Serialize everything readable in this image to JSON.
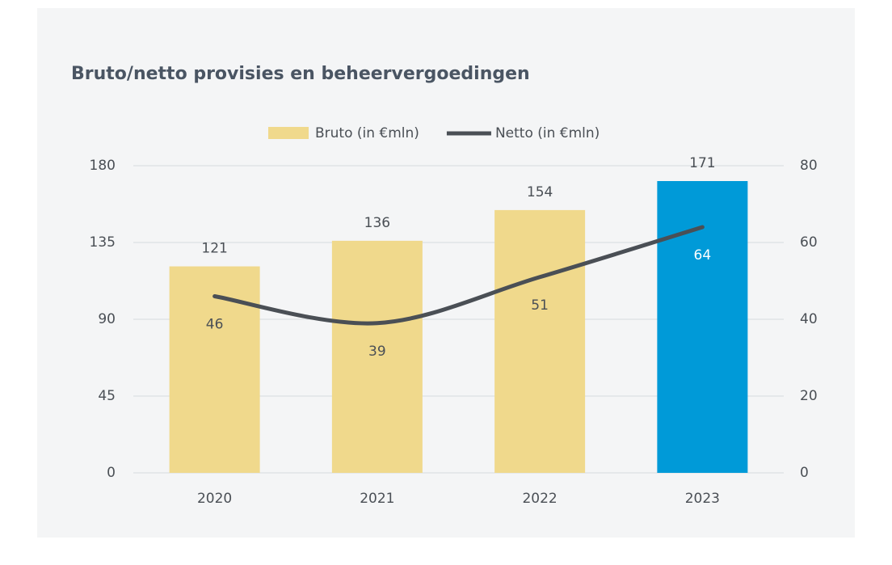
{
  "chart_data": {
    "type": "bar_line",
    "title": "Bruto/netto provisies en beheervergoedingen",
    "categories": [
      "2020",
      "2021",
      "2022",
      "2023"
    ],
    "series": [
      {
        "name": "Bruto (in €mln)",
        "type": "bar",
        "color": "#f0d98c",
        "colors": [
          "#f0d98c",
          "#f0d98c",
          "#f0d98c",
          "#009ad8"
        ],
        "values": [
          121,
          136,
          154,
          171
        ]
      },
      {
        "name": "Netto (in €mln)",
        "type": "line",
        "axis": "y2",
        "color": "#4a4f55",
        "values": [
          46,
          39,
          51,
          64
        ]
      }
    ],
    "ylim": [
      0,
      180
    ],
    "yticks": [
      0,
      45,
      90,
      135,
      180
    ],
    "y2lim": [
      0,
      80
    ],
    "y2ticks": [
      0,
      20,
      40,
      60,
      80
    ],
    "grid": true,
    "legend": "top"
  }
}
